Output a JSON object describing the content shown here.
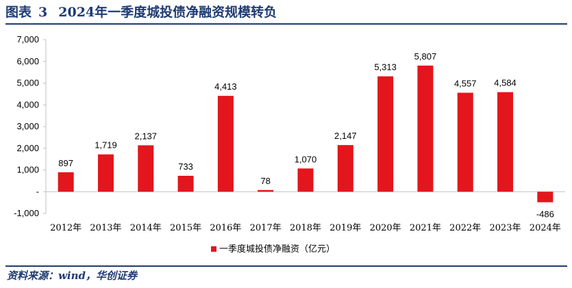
{
  "header": {
    "figure_label": "图表",
    "figure_number": "3",
    "title": "2024年一季度城投债净融资规模转负"
  },
  "footer": {
    "source": "资料来源：wind，华创证券"
  },
  "colors": {
    "bar": "#e3161d",
    "title": "#1f3b73",
    "rule": "#1f3b73",
    "axis": "#bfbfbf"
  },
  "chart_data": {
    "type": "bar",
    "categories": [
      "2012年",
      "2013年",
      "2014年",
      "2015年",
      "2016年",
      "2017年",
      "2018年",
      "2019年",
      "2020年",
      "2021年",
      "2022年",
      "2023年",
      "2024年"
    ],
    "series": [
      {
        "name": "一季度城投债净融资（亿元）",
        "values": [
          897,
          1719,
          2137,
          733,
          4413,
          78,
          1070,
          2147,
          5313,
          5807,
          4557,
          4584,
          -486
        ],
        "data_labels": [
          "897",
          "1,719",
          "2,137",
          "733",
          "4,413",
          "78",
          "1,070",
          "2,147",
          "5,313",
          "5,807",
          "4,557",
          "4,584",
          "-486"
        ]
      }
    ],
    "y_ticks": [
      -1000,
      0,
      1000,
      2000,
      3000,
      4000,
      5000,
      6000,
      7000
    ],
    "y_tick_labels": [
      "-1,000",
      "-",
      "1,000",
      "2,000",
      "3,000",
      "4,000",
      "5,000",
      "6,000",
      "7,000"
    ],
    "ylim": [
      -1000,
      7000
    ],
    "xlabel": "",
    "ylabel": "",
    "grid": false,
    "legend_position": "bottom"
  }
}
